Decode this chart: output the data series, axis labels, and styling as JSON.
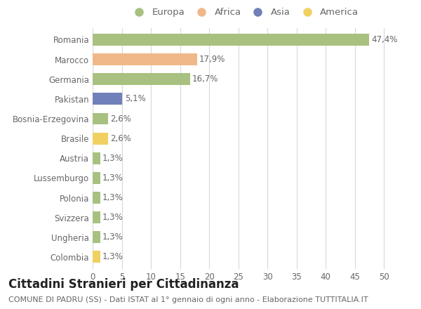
{
  "categories": [
    "Romania",
    "Marocco",
    "Germania",
    "Pakistan",
    "Bosnia-Erzegovina",
    "Brasile",
    "Austria",
    "Lussemburgo",
    "Polonia",
    "Svizzera",
    "Ungheria",
    "Colombia"
  ],
  "values": [
    47.4,
    17.9,
    16.7,
    5.1,
    2.6,
    2.6,
    1.3,
    1.3,
    1.3,
    1.3,
    1.3,
    1.3
  ],
  "labels": [
    "47,4%",
    "17,9%",
    "16,7%",
    "5,1%",
    "2,6%",
    "2,6%",
    "1,3%",
    "1,3%",
    "1,3%",
    "1,3%",
    "1,3%",
    "1,3%"
  ],
  "colors": [
    "#a8c080",
    "#f0b888",
    "#a8c080",
    "#7080b8",
    "#a8c080",
    "#f0d060",
    "#a8c080",
    "#a8c080",
    "#a8c080",
    "#a8c080",
    "#a8c080",
    "#f0d060"
  ],
  "legend_labels": [
    "Europa",
    "Africa",
    "Asia",
    "America"
  ],
  "legend_colors": [
    "#a8c080",
    "#f0b888",
    "#7080b8",
    "#f0d060"
  ],
  "title": "Cittadini Stranieri per Cittadinanza",
  "subtitle": "COMUNE DI PADRU (SS) - Dati ISTAT al 1° gennaio di ogni anno - Elaborazione TUTTITALIA.IT",
  "xlim": [
    0,
    52
  ],
  "xticks": [
    0,
    5,
    10,
    15,
    20,
    25,
    30,
    35,
    40,
    45,
    50
  ],
  "background_color": "#ffffff",
  "grid_color": "#d8d8d8",
  "bar_height": 0.6,
  "title_fontsize": 12,
  "subtitle_fontsize": 8,
  "label_fontsize": 8.5,
  "tick_fontsize": 8.5,
  "legend_fontsize": 9.5
}
